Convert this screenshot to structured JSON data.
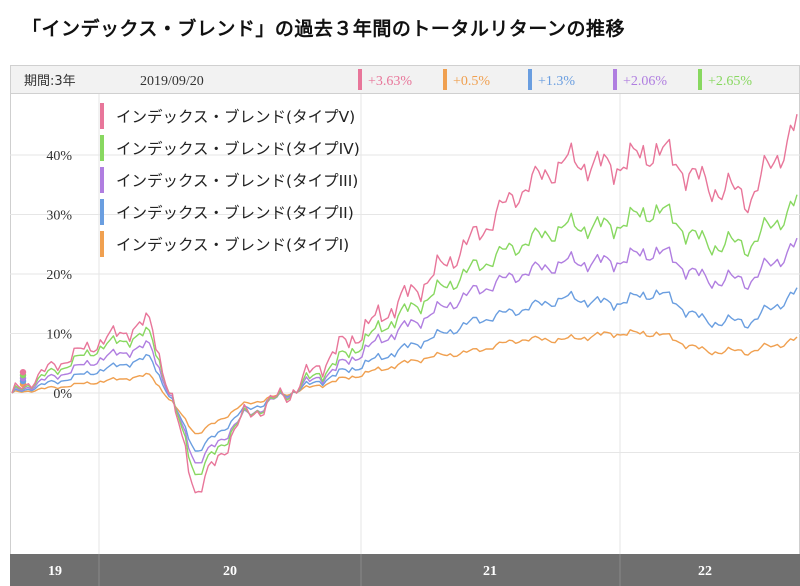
{
  "title": "「インデックス・ブレンド」の過去３年間のトータルリターンの推移",
  "header": {
    "period_label": "期間:3年",
    "date": "2019/09/20",
    "changes": [
      {
        "text": "+3.63%",
        "color": "#e8769a"
      },
      {
        "text": "+0.5%",
        "color": "#f0a050"
      },
      {
        "text": "+1.3%",
        "color": "#6a9ee0"
      },
      {
        "text": "+2.06%",
        "color": "#b07ee0"
      },
      {
        "text": "+2.65%",
        "color": "#88d860"
      }
    ]
  },
  "chart_data": {
    "type": "line",
    "x_ticks": [
      "19",
      "20",
      "21",
      "22"
    ],
    "y_ticks": [
      "0%",
      "10%",
      "20%",
      "30%",
      "40%"
    ],
    "ylim": [
      -25,
      50
    ],
    "grid": true,
    "legend_position": "top-left",
    "series": [
      {
        "name": "インデックス・ブレンド(タイプV)",
        "color": "#e8769a",
        "values": [
          0,
          5,
          9,
          12,
          -17,
          -4,
          0,
          7,
          13,
          19,
          26,
          34,
          39,
          38,
          41,
          35,
          33,
          45
        ]
      },
      {
        "name": "インデックス・ブレンド(タイプIV)",
        "color": "#88d860",
        "values": [
          0,
          4,
          8,
          10,
          -14,
          -4,
          0,
          5,
          11,
          16,
          21,
          25,
          28,
          28,
          31,
          25,
          25,
          32
        ]
      },
      {
        "name": "インデックス・ブレンド(タイプIII)",
        "color": "#b07ee0",
        "values": [
          0,
          3,
          6,
          8,
          -12,
          -4,
          0,
          4,
          9,
          13,
          17,
          20,
          22,
          22,
          24,
          19,
          19,
          25
        ]
      },
      {
        "name": "インデックス・ブレンド(タイプII)",
        "color": "#6a9ee0",
        "values": [
          0,
          2,
          4,
          6,
          -10,
          -3,
          0,
          3,
          6,
          9,
          12,
          14,
          16,
          15,
          17,
          12,
          12,
          17
        ]
      },
      {
        "name": "インデックス・ブレンド(タイプI)",
        "color": "#f0a050",
        "values": [
          0,
          1,
          2,
          3,
          -7,
          -2,
          0,
          2,
          4,
          6,
          7,
          9,
          9,
          10,
          10,
          7,
          7,
          9
        ]
      }
    ]
  }
}
